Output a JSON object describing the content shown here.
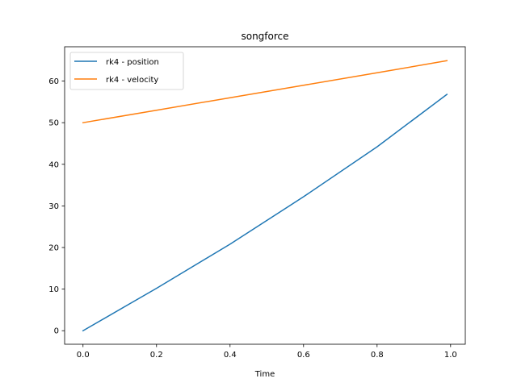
{
  "chart_data": {
    "type": "line",
    "title": "songforce",
    "xlabel": "Time",
    "ylabel": "",
    "xlim": [
      -0.05,
      1.04
    ],
    "ylim": [
      -3.25,
      68.25
    ],
    "xticks": [
      0.0,
      0.2,
      0.4,
      0.6,
      0.8,
      1.0
    ],
    "xtick_labels": [
      "0.0",
      "0.2",
      "0.4",
      "0.6",
      "0.8",
      "1.0"
    ],
    "yticks": [
      0,
      10,
      20,
      30,
      40,
      50,
      60
    ],
    "ytick_labels": [
      "0",
      "10",
      "20",
      "30",
      "40",
      "50",
      "60"
    ],
    "grid": false,
    "legend_position": "upper-left",
    "series": [
      {
        "name": "rk4 - position",
        "color": "#1f77b4",
        "x": [
          0.0,
          0.2,
          0.4,
          0.6,
          0.8,
          0.99
        ],
        "y": [
          0.0,
          10.2,
          20.8,
          32.2,
          44.2,
          56.8
        ]
      },
      {
        "name": "rk4 - velocity",
        "color": "#ff7f0e",
        "x": [
          0.0,
          0.2,
          0.4,
          0.6,
          0.8,
          0.99
        ],
        "y": [
          50.0,
          53.0,
          56.0,
          59.0,
          62.0,
          64.9
        ]
      }
    ]
  }
}
